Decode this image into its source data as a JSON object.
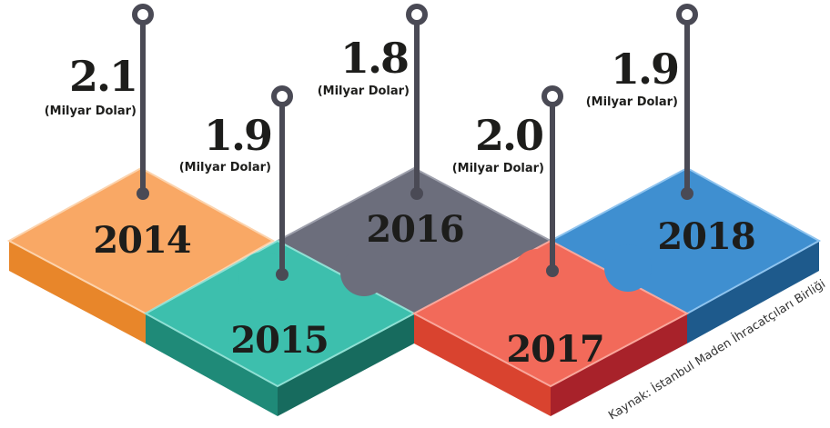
{
  "items": [
    {
      "year": "2014",
      "value": "2.1",
      "unit": "(Milyar Dolar)"
    },
    {
      "year": "2015",
      "value": "1.9",
      "unit": "(Milyar Dolar)"
    },
    {
      "year": "2016",
      "value": "1.8",
      "unit": "(Milyar Dolar)"
    },
    {
      "year": "2017",
      "value": "2.0",
      "unit": "(Milyar Dolar)"
    },
    {
      "year": "2018",
      "value": "1.9",
      "unit": "(Milyar Dolar)"
    }
  ],
  "source": "Kaynak: İstanbul Maden İhracatçıları Birliği"
}
